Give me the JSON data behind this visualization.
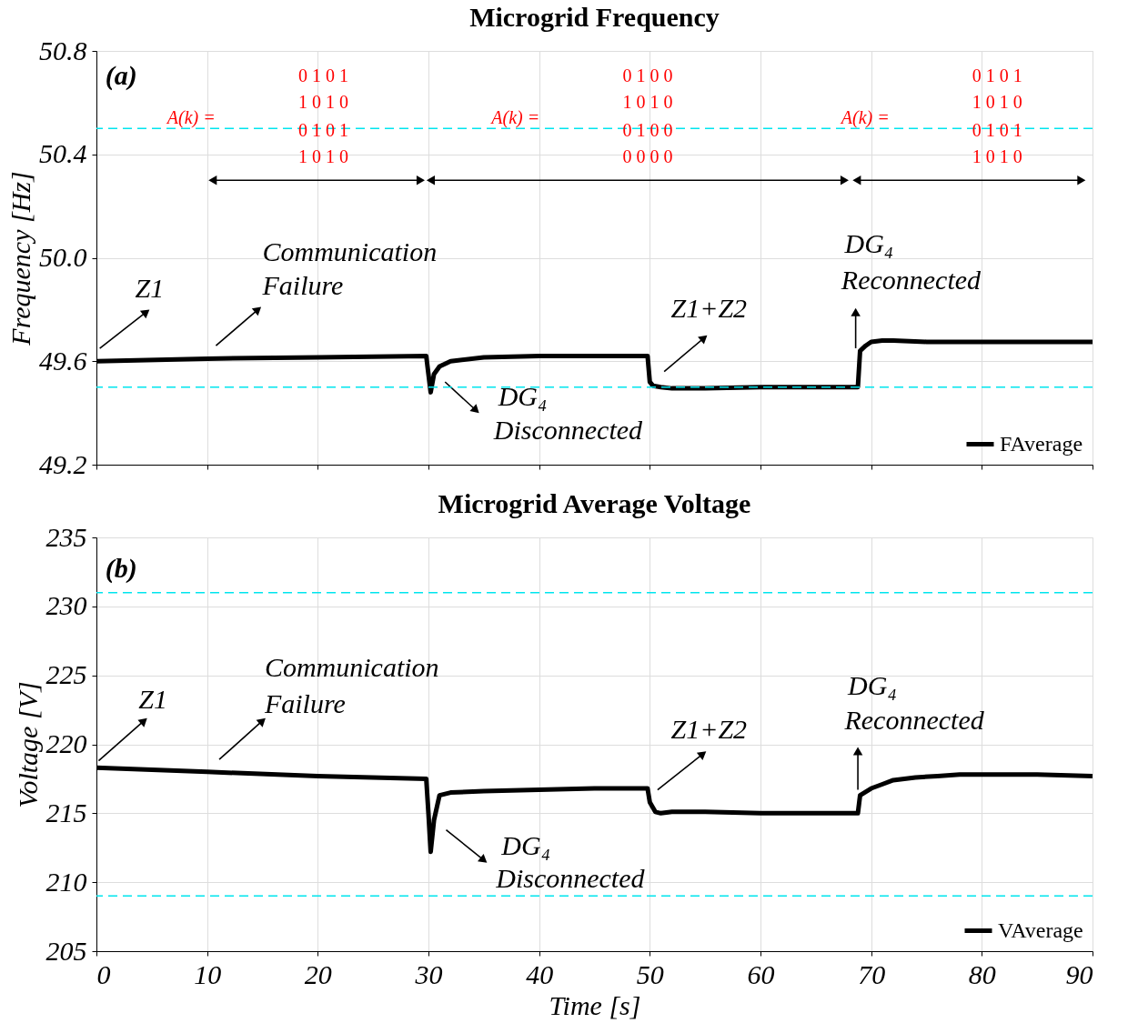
{
  "chart_data": [
    {
      "type": "line",
      "title": "Microgrid Frequency",
      "ylabel": "Frequency [Hz]",
      "xlim": [
        0,
        90
      ],
      "xticks": [
        0,
        10,
        20,
        30,
        40,
        50,
        60,
        70,
        80,
        90
      ],
      "ylim": [
        49.2,
        50.8
      ],
      "yticks": [
        49.2,
        49.6,
        {
          "value": 50.0,
          "label": "50.0"
        },
        50.4,
        50.8
      ],
      "tick_labels": "y",
      "grid": true,
      "legend": "bottom right",
      "ref_lines": [
        {
          "axis": "y",
          "value": 50.5,
          "color": "#00e5ee",
          "line_style": "dashed"
        },
        {
          "axis": "y",
          "value": 49.5,
          "color": "#00e5ee",
          "line_style": "dashed"
        }
      ],
      "series": [
        {
          "name": "FAverage",
          "color": "#000000",
          "x": [
            0,
            10,
            20,
            29.8,
            30,
            30.2,
            30.5,
            31,
            32,
            35,
            40,
            45,
            49.8,
            50,
            50.3,
            51,
            52,
            55,
            60,
            65,
            68.8,
            69,
            69.5,
            70,
            71,
            72,
            75,
            80,
            90
          ],
          "values": [
            49.6,
            49.61,
            49.615,
            49.62,
            49.55,
            49.48,
            49.55,
            49.58,
            49.6,
            49.615,
            49.62,
            49.62,
            49.62,
            49.52,
            49.505,
            49.5,
            49.495,
            49.495,
            49.5,
            49.5,
            49.5,
            49.64,
            49.66,
            49.675,
            49.68,
            49.68,
            49.675,
            49.675,
            49.675
          ]
        },
        {
          "color": "#000000",
          "marker": "triangle",
          "x": [
            10.5,
            29.3
          ],
          "values": [
            50.3,
            50.3
          ]
        },
        {
          "color": "#000000",
          "marker": "triangle",
          "x": [
            30.2,
            67.6
          ],
          "values": [
            50.3,
            50.3
          ]
        },
        {
          "color": "#000000",
          "marker": "triangle",
          "x": [
            68.7,
            89.0
          ],
          "values": [
            50.3,
            50.3
          ]
        },
        {
          "color": "#000000",
          "x": [
            0.3,
            4.5
          ],
          "values": [
            49.65,
            49.79
          ]
        },
        {
          "color": "#000000",
          "x": [
            10.8,
            14.6
          ],
          "values": [
            49.66,
            49.8
          ]
        },
        {
          "color": "#000000",
          "x": [
            31.5,
            34.3
          ],
          "values": [
            49.52,
            49.41
          ]
        },
        {
          "color": "#000000",
          "x": [
            51.3,
            54.9
          ],
          "values": [
            49.56,
            49.69
          ]
        },
        {
          "color": "#000000",
          "x": [
            68.6,
            68.6
          ],
          "values": [
            49.65,
            49.79
          ]
        }
      ],
      "annotations": [
        "(a)",
        "A(k) =",
        "0 1 0 1",
        "1 0 1 0",
        "0 1 0 1",
        "1 0 1 0",
        "A(k) =",
        "0 1 0 0",
        "1 0 1 0",
        "0 1 0 0",
        "0 0 0 0",
        "A(k) =",
        "0 1 0 1",
        "1 0 1 0",
        "0 1 0 1",
        "1 0 1 0",
        "Z1",
        "Communication",
        "Failure",
        "DG₄",
        "Disconnected",
        "Z1+Z2",
        "DG₄",
        "Reconnected"
      ]
    },
    {
      "type": "line",
      "title": "Microgrid Average Voltage",
      "xlabel": "Time [s]",
      "ylabel": "Voltage [V]",
      "xlim": [
        0,
        90
      ],
      "xticks": [
        0,
        10,
        20,
        30,
        40,
        50,
        60,
        70,
        80,
        90
      ],
      "ylim": [
        205,
        235
      ],
      "yticks": [
        205,
        210,
        215,
        220,
        225,
        230,
        235
      ],
      "grid": true,
      "legend": "bottom right",
      "ref_lines": [
        {
          "axis": "y",
          "value": 231,
          "color": "#00e5ee",
          "line_style": "dashed"
        },
        {
          "axis": "y",
          "value": 209,
          "color": "#00e5ee",
          "line_style": "dashed"
        }
      ],
      "series": [
        {
          "name": "VAverage",
          "color": "#000000",
          "x": [
            0,
            10,
            20,
            29.8,
            30,
            30.2,
            30.5,
            31,
            32,
            35,
            40,
            45,
            49.8,
            50,
            50.5,
            51,
            52,
            55,
            60,
            65,
            68.8,
            69,
            70,
            71,
            72,
            74,
            76,
            78,
            80,
            85,
            90
          ],
          "values": [
            218.3,
            218,
            217.7,
            217.5,
            215,
            212.2,
            214.5,
            216.3,
            216.5,
            216.6,
            216.7,
            216.8,
            216.8,
            215.8,
            215.1,
            215.0,
            215.1,
            215.1,
            215.0,
            215.0,
            215.0,
            216.3,
            216.8,
            217.1,
            217.4,
            217.6,
            217.7,
            217.8,
            217.8,
            217.8,
            217.7
          ]
        },
        {
          "color": "#000000",
          "x": [
            0.2,
            4.3
          ],
          "values": [
            218.8,
            221.7
          ]
        },
        {
          "color": "#000000",
          "x": [
            11.1,
            15.0
          ],
          "values": [
            218.9,
            221.7
          ]
        },
        {
          "color": "#000000",
          "x": [
            31.6,
            35.0
          ],
          "values": [
            213.8,
            211.6
          ]
        },
        {
          "color": "#000000",
          "x": [
            50.7,
            54.8
          ],
          "values": [
            216.7,
            219.3
          ]
        },
        {
          "color": "#000000",
          "x": [
            68.8,
            68.8
          ],
          "values": [
            216.7,
            219.5
          ]
        }
      ],
      "annotations": [
        "(b)",
        "Z1",
        "Communication",
        "Failure",
        "DG₄",
        "Disconnected",
        "Z1+Z2",
        "DG₄",
        "Reconnected"
      ]
    }
  ]
}
